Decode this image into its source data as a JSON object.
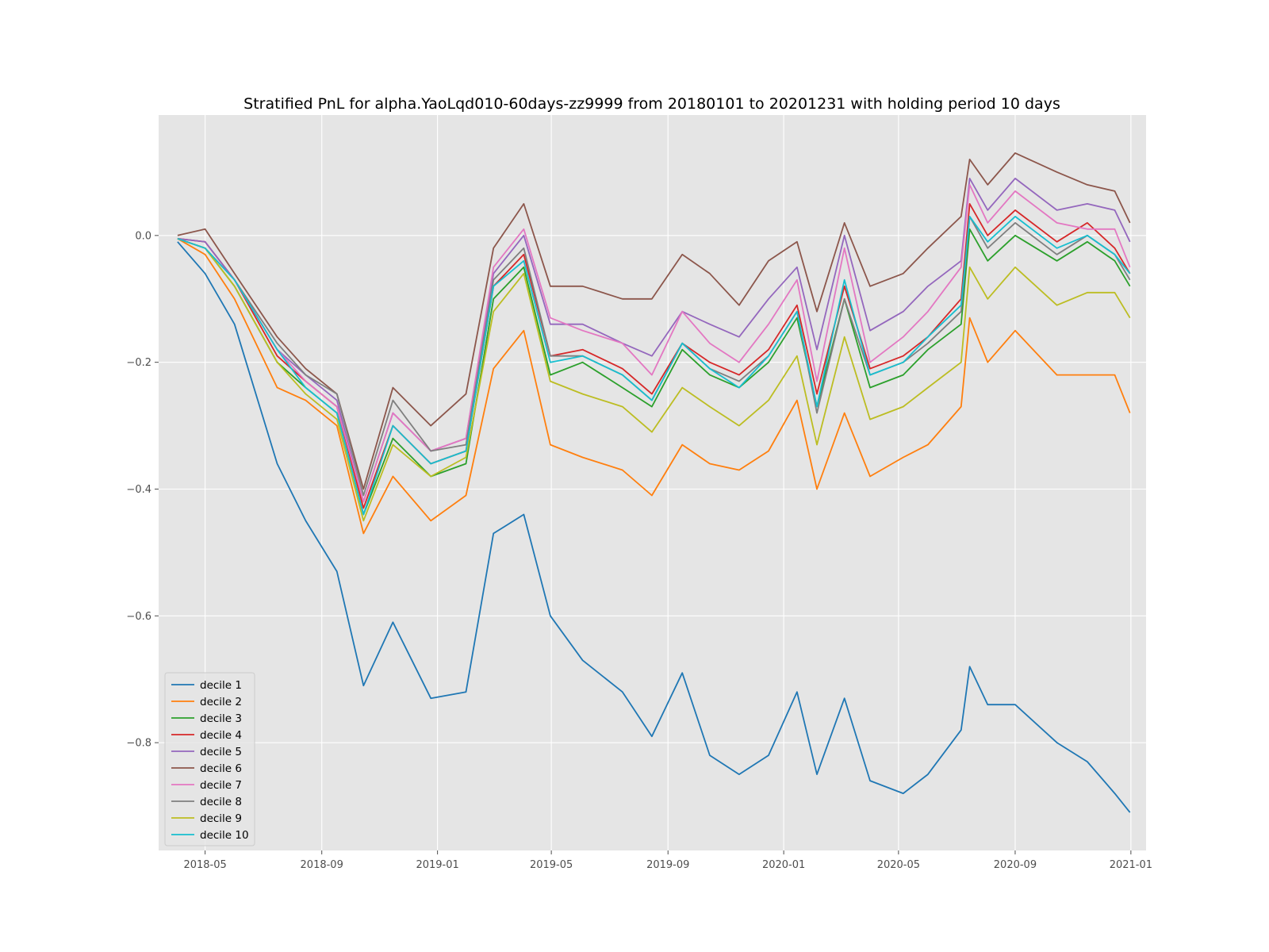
{
  "chart_data": {
    "type": "line",
    "title": "Stratified PnL for alpha.YaoLqd010-60days-zz9999 from 20180101 to 20201231 with holding period 10 days",
    "xlabel": "",
    "ylabel": "",
    "x_ticks": [
      "2018-05",
      "2018-09",
      "2019-01",
      "2019-05",
      "2019-09",
      "2020-01",
      "2020-05",
      "2020-09",
      "2021-01"
    ],
    "y_ticks": [
      "0.0",
      "−0.2",
      "−0.4",
      "−0.6",
      "−0.8"
    ],
    "xlim": [
      "2018-03-13",
      "2021-01-17"
    ],
    "ylim": [
      -0.97,
      0.19
    ],
    "grid": true,
    "legend_position": "lower left",
    "x": [
      "2018-04-02",
      "2018-05-01",
      "2018-06-01",
      "2018-07-16",
      "2018-08-15",
      "2018-09-17",
      "2018-10-15",
      "2018-11-15",
      "2018-12-25",
      "2019-01-31",
      "2019-03-01",
      "2019-04-02",
      "2019-04-30",
      "2019-06-03",
      "2019-07-15",
      "2019-08-15",
      "2019-09-16",
      "2019-10-15",
      "2019-11-15",
      "2019-12-16",
      "2020-01-15",
      "2020-02-05",
      "2020-03-05",
      "2020-04-01",
      "2020-05-06",
      "2020-06-01",
      "2020-07-06",
      "2020-07-15",
      "2020-08-03",
      "2020-09-01",
      "2020-10-15",
      "2020-11-16",
      "2020-12-15",
      "2020-12-31"
    ],
    "series": [
      {
        "name": "decile 1",
        "color": "#1f77b4",
        "values": [
          -0.01,
          -0.06,
          -0.14,
          -0.36,
          -0.45,
          -0.53,
          -0.71,
          -0.61,
          -0.73,
          -0.72,
          -0.47,
          -0.44,
          -0.6,
          -0.67,
          -0.72,
          -0.79,
          -0.69,
          -0.82,
          -0.85,
          -0.82,
          -0.72,
          -0.85,
          -0.73,
          -0.86,
          -0.88,
          -0.85,
          -0.78,
          -0.68,
          -0.74,
          -0.74,
          -0.8,
          -0.83,
          -0.88,
          -0.91
        ]
      },
      {
        "name": "decile 2",
        "color": "#ff7f0e",
        "values": [
          -0.005,
          -0.03,
          -0.1,
          -0.24,
          -0.26,
          -0.3,
          -0.47,
          -0.38,
          -0.45,
          -0.41,
          -0.21,
          -0.15,
          -0.33,
          -0.35,
          -0.37,
          -0.41,
          -0.33,
          -0.36,
          -0.37,
          -0.34,
          -0.26,
          -0.4,
          -0.28,
          -0.38,
          -0.35,
          -0.33,
          -0.27,
          -0.13,
          -0.2,
          -0.15,
          -0.22,
          -0.22,
          -0.22,
          -0.28
        ]
      },
      {
        "name": "decile 3",
        "color": "#2ca02c",
        "values": [
          -0.005,
          -0.02,
          -0.08,
          -0.2,
          -0.24,
          -0.28,
          -0.44,
          -0.32,
          -0.38,
          -0.36,
          -0.1,
          -0.05,
          -0.22,
          -0.2,
          -0.24,
          -0.27,
          -0.18,
          -0.22,
          -0.24,
          -0.2,
          -0.13,
          -0.27,
          -0.1,
          -0.24,
          -0.22,
          -0.18,
          -0.14,
          0.01,
          -0.04,
          0.0,
          -0.04,
          -0.01,
          -0.04,
          -0.08
        ]
      },
      {
        "name": "decile 4",
        "color": "#d62728",
        "values": [
          -0.005,
          -0.01,
          -0.07,
          -0.19,
          -0.23,
          -0.27,
          -0.43,
          -0.3,
          -0.36,
          -0.34,
          -0.08,
          -0.03,
          -0.19,
          -0.18,
          -0.21,
          -0.25,
          -0.17,
          -0.2,
          -0.22,
          -0.18,
          -0.11,
          -0.25,
          -0.08,
          -0.21,
          -0.19,
          -0.16,
          -0.1,
          0.05,
          0.0,
          0.04,
          -0.01,
          0.02,
          -0.02,
          -0.06
        ]
      },
      {
        "name": "decile 5",
        "color": "#9467bd",
        "values": [
          -0.005,
          -0.01,
          -0.07,
          -0.18,
          -0.22,
          -0.26,
          -0.42,
          -0.28,
          -0.34,
          -0.32,
          -0.06,
          0.0,
          -0.14,
          -0.14,
          -0.17,
          -0.19,
          -0.12,
          -0.14,
          -0.16,
          -0.1,
          -0.05,
          -0.18,
          0.0,
          -0.15,
          -0.12,
          -0.08,
          -0.04,
          0.09,
          0.04,
          0.09,
          0.04,
          0.05,
          0.04,
          -0.01
        ]
      },
      {
        "name": "decile 6",
        "color": "#8c564b",
        "values": [
          0.0,
          0.01,
          -0.06,
          -0.16,
          -0.21,
          -0.25,
          -0.4,
          -0.24,
          -0.3,
          -0.25,
          -0.02,
          0.05,
          -0.08,
          -0.08,
          -0.1,
          -0.1,
          -0.03,
          -0.06,
          -0.11,
          -0.04,
          -0.01,
          -0.12,
          0.02,
          -0.08,
          -0.06,
          -0.02,
          0.03,
          0.12,
          0.08,
          0.13,
          0.1,
          0.08,
          0.07,
          0.02
        ]
      },
      {
        "name": "decile 7",
        "color": "#e377c2",
        "values": [
          -0.005,
          -0.02,
          -0.07,
          -0.18,
          -0.23,
          -0.27,
          -0.42,
          -0.28,
          -0.34,
          -0.32,
          -0.05,
          0.01,
          -0.13,
          -0.15,
          -0.17,
          -0.22,
          -0.12,
          -0.17,
          -0.2,
          -0.14,
          -0.07,
          -0.23,
          -0.02,
          -0.2,
          -0.16,
          -0.12,
          -0.05,
          0.08,
          0.02,
          0.07,
          0.02,
          0.01,
          0.01,
          -0.05
        ]
      },
      {
        "name": "decile 8",
        "color": "#7f7f7f",
        "values": [
          -0.005,
          -0.02,
          -0.07,
          -0.17,
          -0.22,
          -0.25,
          -0.41,
          -0.26,
          -0.34,
          -0.33,
          -0.07,
          -0.02,
          -0.19,
          -0.19,
          -0.22,
          -0.26,
          -0.17,
          -0.21,
          -0.23,
          -0.19,
          -0.12,
          -0.28,
          -0.1,
          -0.22,
          -0.2,
          -0.17,
          -0.12,
          0.03,
          -0.02,
          0.02,
          -0.03,
          0.0,
          -0.03,
          -0.07
        ]
      },
      {
        "name": "decile 9",
        "color": "#bcbd22",
        "values": [
          -0.005,
          -0.02,
          -0.08,
          -0.2,
          -0.25,
          -0.29,
          -0.45,
          -0.33,
          -0.38,
          -0.35,
          -0.12,
          -0.06,
          -0.23,
          -0.25,
          -0.27,
          -0.31,
          -0.24,
          -0.27,
          -0.3,
          -0.26,
          -0.19,
          -0.33,
          -0.16,
          -0.29,
          -0.27,
          -0.24,
          -0.2,
          -0.05,
          -0.1,
          -0.05,
          -0.11,
          -0.09,
          -0.09,
          -0.13
        ]
      },
      {
        "name": "decile 10",
        "color": "#17becf",
        "values": [
          -0.005,
          -0.02,
          -0.07,
          -0.18,
          -0.24,
          -0.28,
          -0.44,
          -0.3,
          -0.36,
          -0.34,
          -0.08,
          -0.04,
          -0.2,
          -0.19,
          -0.22,
          -0.26,
          -0.17,
          -0.21,
          -0.24,
          -0.19,
          -0.12,
          -0.27,
          -0.07,
          -0.22,
          -0.2,
          -0.16,
          -0.11,
          0.03,
          -0.01,
          0.03,
          -0.02,
          0.0,
          -0.03,
          -0.06
        ]
      }
    ]
  }
}
